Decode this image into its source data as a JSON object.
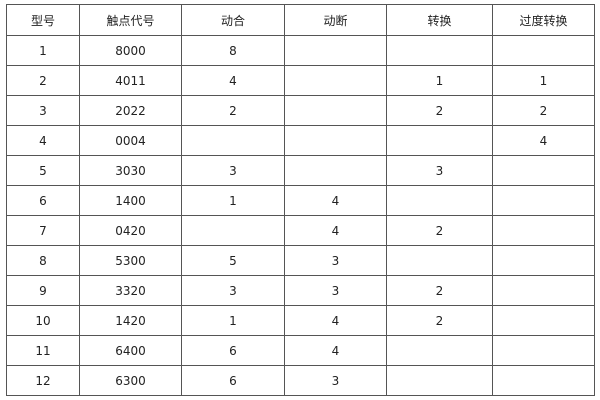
{
  "table": {
    "headers": [
      "型号",
      "触点代号",
      "动合",
      "动断",
      "转换",
      "过度转换"
    ],
    "rows": [
      [
        "1",
        "8000",
        "8",
        "",
        "",
        ""
      ],
      [
        "2",
        "4011",
        "4",
        "",
        "1",
        "1"
      ],
      [
        "3",
        "2022",
        "2",
        "",
        "2",
        "2"
      ],
      [
        "4",
        "0004",
        "",
        "",
        "",
        "4"
      ],
      [
        "5",
        "3030",
        "3",
        "",
        "3",
        ""
      ],
      [
        "6",
        "1400",
        "1",
        "4",
        "",
        ""
      ],
      [
        "7",
        "0420",
        "",
        "4",
        "2",
        ""
      ],
      [
        "8",
        "5300",
        "5",
        "3",
        "",
        ""
      ],
      [
        "9",
        "3320",
        "3",
        "3",
        "2",
        ""
      ],
      [
        "10",
        "1420",
        "1",
        "4",
        "2",
        ""
      ],
      [
        "11",
        "6400",
        "6",
        "4",
        "",
        ""
      ],
      [
        "12",
        "6300",
        "6",
        "3",
        "",
        ""
      ]
    ]
  }
}
